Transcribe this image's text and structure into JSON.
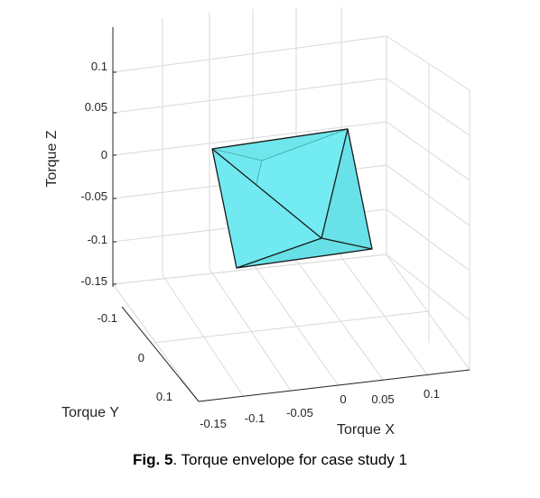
{
  "chart_data": {
    "type": "3d-polyhedron",
    "title": "",
    "axes": {
      "x": {
        "label": "Torque X",
        "ticks": [
          "-0.15",
          "-0.1",
          "-0.05",
          "0",
          "0.05",
          "0.1"
        ]
      },
      "y": {
        "label": "Torque Y",
        "ticks": [
          "-0.1",
          "0",
          "0.1"
        ]
      },
      "z": {
        "label": "Torque Z",
        "ticks": [
          "0.1",
          "0.05",
          "0",
          "-0.05",
          "-0.1",
          "-0.15"
        ]
      }
    },
    "grid": true,
    "face_color": "#6ee8ee",
    "edge_color": "#1a1a1a",
    "shape": "octahedron (torque envelope)"
  },
  "caption": {
    "label": "Fig. 5",
    "text": ". Torque envelope for case study 1"
  }
}
